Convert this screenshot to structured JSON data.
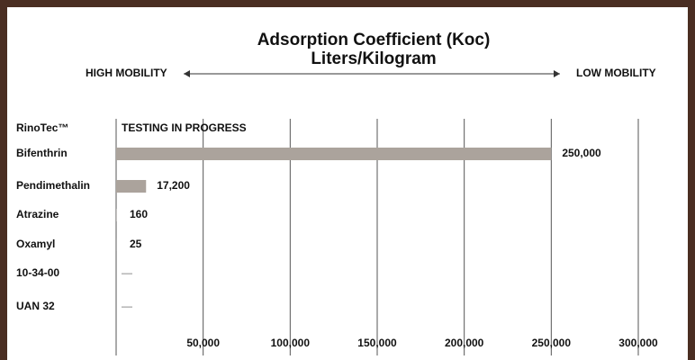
{
  "chart_data": {
    "type": "hbar",
    "title": "Adsorption Coefficient (Koc)",
    "subtitle": "Liters/Kilogram",
    "annotations": {
      "left": "HIGH MOBILITY",
      "right": "LOW MOBILITY"
    },
    "categories": [
      "RinoTec™",
      "Bifenthrin",
      "Pendimethalin",
      "Atrazine",
      "Oxamyl",
      "10-34-00",
      "UAN 32"
    ],
    "values": [
      null,
      250000,
      17200,
      160,
      25,
      null,
      null
    ],
    "value_labels": [
      "TESTING IN PROGRESS",
      "250,000",
      "17,200",
      "160",
      "25",
      "—",
      "—"
    ],
    "color": "#aba39c",
    "xlim": [
      0,
      300000
    ],
    "xticks": [
      {
        "value": 50000,
        "label": "50,000"
      },
      {
        "value": 100000,
        "label": "100,000"
      },
      {
        "value": 150000,
        "label": "150,000"
      },
      {
        "value": 200000,
        "label": "200,000"
      },
      {
        "value": 250000,
        "label": "250,000"
      },
      {
        "value": 300000,
        "label": "300,000"
      }
    ],
    "grid": true
  }
}
